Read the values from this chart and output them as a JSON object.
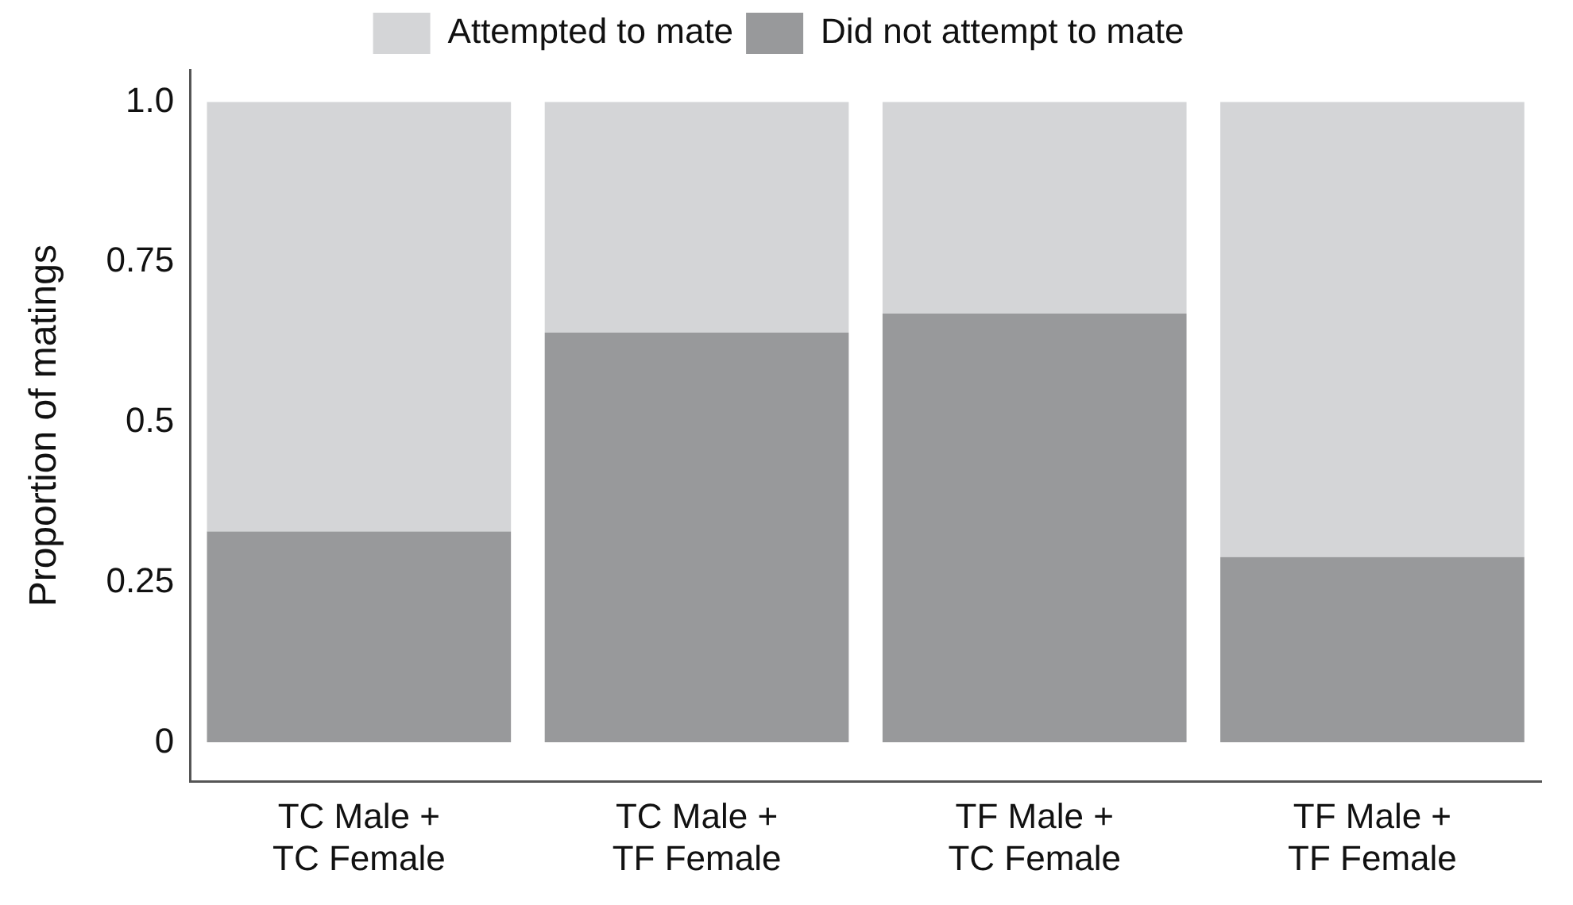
{
  "chart_data": {
    "type": "bar",
    "ylabel": "Proportion of matings",
    "stacked": true,
    "categories": [
      "TC Male + TC Female",
      "TC Male + TF Female",
      "TF Male + TC Female",
      "TF Male + TF Female"
    ],
    "series": [
      {
        "name": "Did not attempt to mate",
        "color": "#98999b",
        "values": [
          0.33,
          0.64,
          0.67,
          0.29
        ]
      },
      {
        "name": "Attempted to mate",
        "color": "#d4d5d7",
        "values": [
          0.67,
          0.36,
          0.33,
          0.71
        ]
      }
    ],
    "ylim": [
      -0.06,
      1.05
    ],
    "yticks": [
      0,
      0.25,
      0.5,
      0.75,
      {
        "value": 1,
        "label": "1.0"
      }
    ],
    "grid": false,
    "legend": "top"
  }
}
